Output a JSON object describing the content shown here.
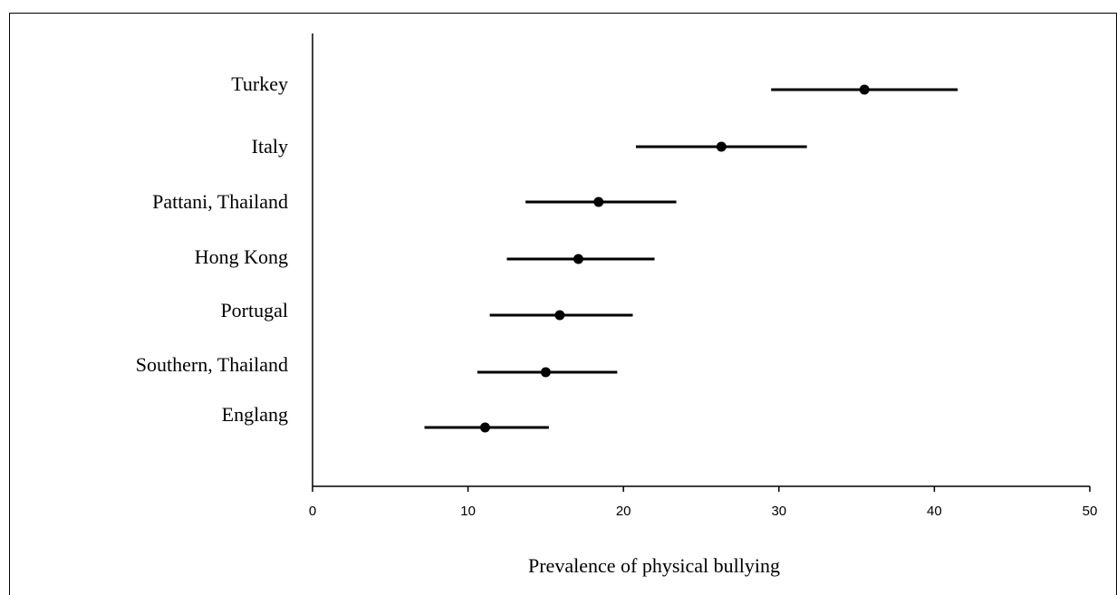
{
  "chart_data": {
    "type": "scatter",
    "subtype": "forest-plot-with-error-bars",
    "title": "",
    "xlabel": "Prevalence of physical bullying",
    "ylabel": "",
    "xlim": [
      0,
      50
    ],
    "xticks": [
      0,
      10,
      20,
      30,
      40,
      50
    ],
    "xtick_labels": [
      "0",
      "10",
      "20",
      "30",
      "40",
      "50"
    ],
    "grid": false,
    "legend": "none",
    "marker_color": "#000000",
    "line_color": "#000000",
    "categories": [
      "Turkey",
      "Italy",
      "Pattani, Thailand",
      "Hong Kong",
      "Portugal",
      "Southern, Thailand",
      "Englang"
    ],
    "points": [
      {
        "label": "Turkey",
        "estimate": 35.5,
        "lower": 29.5,
        "upper": 41.5
      },
      {
        "label": "Italy",
        "estimate": 26.3,
        "lower": 20.8,
        "upper": 31.8
      },
      {
        "label": "Pattani, Thailand",
        "estimate": 18.4,
        "lower": 13.7,
        "upper": 23.4
      },
      {
        "label": "Hong Kong",
        "estimate": 17.1,
        "lower": 12.5,
        "upper": 22.0
      },
      {
        "label": "Portugal",
        "estimate": 15.9,
        "lower": 11.4,
        "upper": 20.6
      },
      {
        "label": "Southern, Thailand",
        "estimate": 15.0,
        "lower": 10.6,
        "upper": 19.6
      },
      {
        "label": "Englang",
        "estimate": 11.1,
        "lower": 7.2,
        "upper": 15.2
      }
    ]
  }
}
